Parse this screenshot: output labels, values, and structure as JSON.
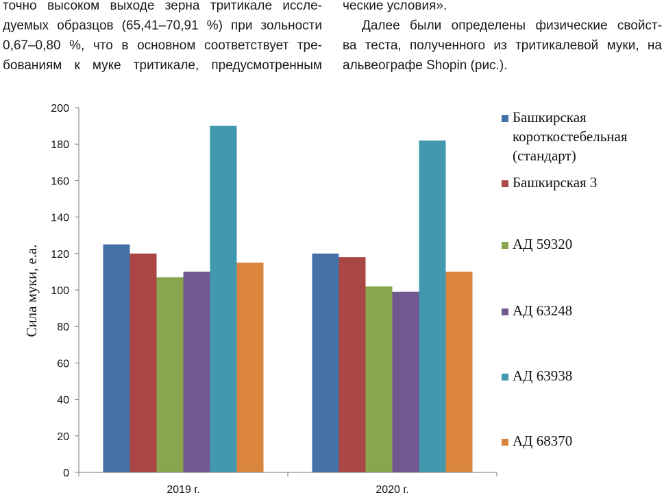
{
  "text": {
    "left_lines": [
      "точно высоком выходе зерна тритикале иссле-",
      "дуемых образцов (65,41–70,91 %) при зольности",
      "0,67–0,80 %, что в основном соответствует тре-",
      "бованиям к муке тритикале, предусмотренным"
    ],
    "right_lines": [
      "ческие условия».",
      "Далее были определены физические свойст-",
      "ва теста, полученного из тритикалевой муки, на",
      "альвеографе Shopin (рис.)."
    ]
  },
  "chart_data": {
    "type": "bar",
    "categories": [
      "2019 г.",
      "2020 г."
    ],
    "ylabel": "Сила муки, е.а.",
    "xlabel": "",
    "title": "",
    "ylim": [
      0,
      200
    ],
    "yticks": [
      0,
      20,
      40,
      60,
      80,
      100,
      120,
      140,
      160,
      180,
      200
    ],
    "grid": false,
    "legend_position": "right",
    "series": [
      {
        "name": "Башкирская короткостебельная (стандарт)",
        "legend_lines": [
          "Башкирская",
          "короткостебельная",
          "(стандарт)"
        ],
        "color": "#4472A8",
        "values": [
          125,
          120
        ]
      },
      {
        "name": "Башкирская 3",
        "legend_lines": [
          "Башкирская 3"
        ],
        "color": "#AA4643",
        "values": [
          120,
          118
        ]
      },
      {
        "name": "АД 59320",
        "legend_lines": [
          "АД 59320"
        ],
        "color": "#89A54E",
        "values": [
          107,
          102
        ]
      },
      {
        "name": "АД 63248",
        "legend_lines": [
          "АД 63248"
        ],
        "color": "#71588F",
        "values": [
          110,
          99
        ]
      },
      {
        "name": "АД 63938",
        "legend_lines": [
          "АД 63938"
        ],
        "color": "#4198AF",
        "values": [
          190,
          182
        ]
      },
      {
        "name": "АД 68370",
        "legend_lines": [
          "АД 68370"
        ],
        "color": "#DB843D",
        "values": [
          115,
          110
        ]
      }
    ]
  }
}
